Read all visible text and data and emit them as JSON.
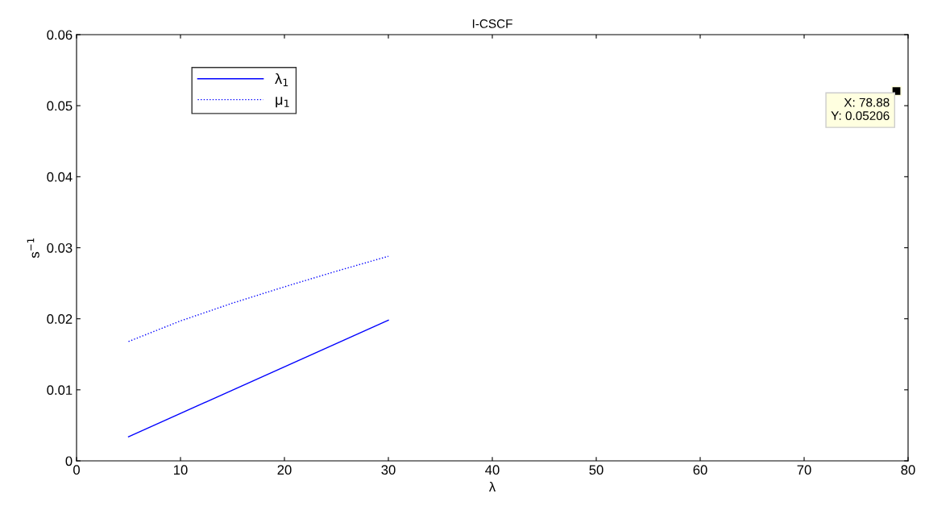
{
  "chart_data": {
    "type": "line",
    "title": "I-CSCF",
    "xlabel": "λ",
    "ylabel": "s$^{−1}$",
    "xlim": [
      0,
      80
    ],
    "xticks": [
      0,
      10,
      20,
      30,
      40,
      50,
      60,
      70,
      80
    ],
    "ylim": [
      0,
      0.06
    ],
    "yticks": [
      0,
      0.01,
      0.02,
      0.03,
      0.04,
      0.05,
      0.06
    ],
    "legend": "top left",
    "grid": false,
    "series": [
      {
        "name": "λ$_{1}$",
        "color": "#0000ff",
        "line_style": "solid",
        "x": [
          5,
          30
        ],
        "values": [
          0.0034,
          0.0198
        ]
      },
      {
        "name": "μ$_{1}$",
        "color": "#0000ff",
        "line_style": "dotted",
        "x": [
          5,
          10,
          15,
          20,
          25,
          30
        ],
        "values": [
          0.0168,
          0.0197,
          0.0222,
          0.0245,
          0.0267,
          0.0288
        ]
      }
    ],
    "annotations": [
      {
        "text": "X: 78.88\nY: 0.05206",
        "x": 78.88,
        "y": 0.05206
      }
    ]
  }
}
